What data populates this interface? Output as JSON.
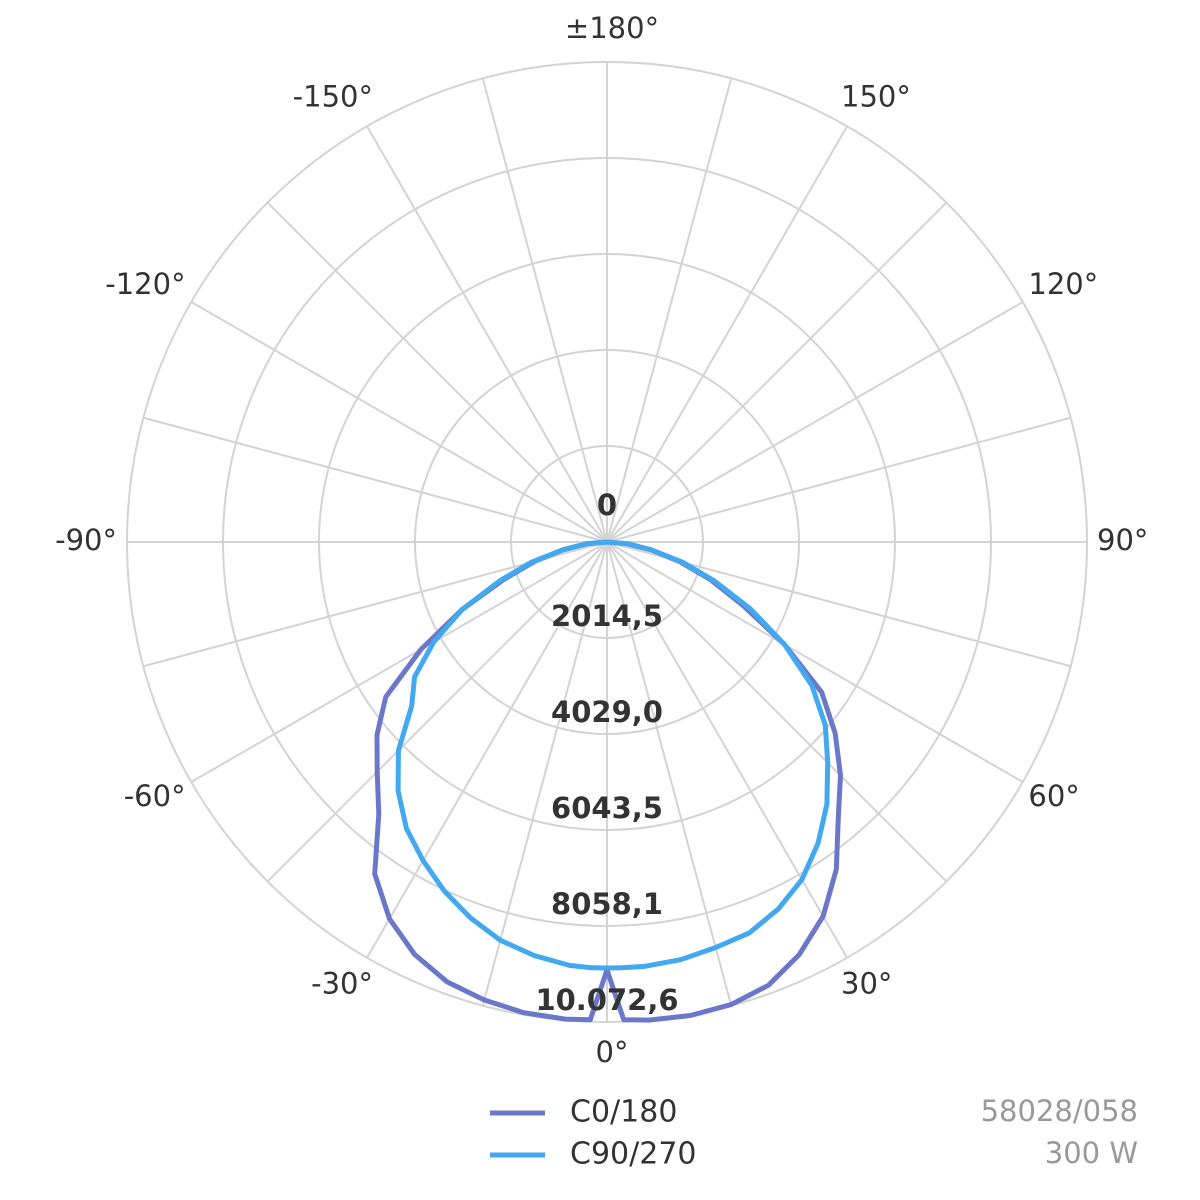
{
  "chart_data": {
    "type": "polar",
    "theta": [
      -90,
      -85,
      -80,
      -75,
      -70,
      -65,
      -60,
      -55,
      -50,
      -45,
      -40,
      -35,
      -30,
      -25,
      -20,
      -15,
      -10,
      -5,
      -2,
      0,
      2,
      5,
      10,
      15,
      20,
      25,
      30,
      35,
      40,
      45,
      50,
      55,
      60,
      65,
      70,
      75,
      80,
      85,
      90
    ],
    "series": [
      {
        "name": "C0/180",
        "color": "#6b78c9",
        "values": [
          0,
          420,
          940,
          1570,
          2310,
          3360,
          4510,
          5670,
          6300,
          6820,
          7450,
          8500,
          9130,
          9550,
          9820,
          9950,
          10030,
          10050,
          10030,
          8980,
          10030,
          10070,
          10090,
          10050,
          9900,
          9550,
          9070,
          8390,
          7550,
          6930,
          6250,
          5500,
          4300,
          3150,
          2310,
          1570,
          940,
          420,
          0
        ]
      },
      {
        "name": "C90/270",
        "color": "#42a8f0",
        "values": [
          0,
          420,
          940,
          1640,
          2410,
          3360,
          4200,
          4930,
          5350,
          6190,
          6820,
          7340,
          7720,
          8080,
          8390,
          8650,
          8810,
          8920,
          8940,
          8940,
          8940,
          8940,
          8900,
          8810,
          8730,
          8500,
          8180,
          7720,
          7180,
          6550,
          5980,
          5250,
          4300,
          3320,
          2410,
          1640,
          940,
          420,
          0
        ]
      }
    ],
    "rlim": [
      0,
      10072.6
    ],
    "rticks": [
      0,
      {
        "value": 2014.5,
        "label": "2014,5"
      },
      {
        "value": 4029.0,
        "label": "4029,0"
      },
      {
        "value": 6043.5,
        "label": "6043,5"
      },
      {
        "value": 8058.1,
        "label": "8058,1"
      },
      {
        "value": 10072.6,
        "label": "10.072,6"
      }
    ],
    "thetaticks": [
      {
        "value": 0,
        "label": "0°"
      },
      {
        "value": 30,
        "label": "30°"
      },
      {
        "value": 60,
        "label": "60°"
      },
      {
        "value": 90,
        "label": "90°"
      },
      {
        "value": 120,
        "label": "120°"
      },
      {
        "value": 150,
        "label": "150°"
      },
      {
        "value": 180,
        "label": "±180°"
      },
      {
        "value": -150,
        "label": "-150°"
      },
      {
        "value": -120,
        "label": "-120°"
      },
      {
        "value": -90,
        "label": "-90°"
      },
      {
        "value": -60,
        "label": "-60°"
      },
      {
        "value": -30,
        "label": "-30°"
      }
    ],
    "thetagrid": [
      0,
      15,
      30,
      45,
      60,
      75,
      90,
      105,
      120,
      135,
      150,
      165,
      180,
      -165,
      -150,
      -135,
      -120,
      -105,
      -90,
      -75,
      -60,
      -45,
      -30,
      -15
    ],
    "grid": true
  },
  "notes": {
    "code": "58028/058",
    "power": "300 W"
  }
}
